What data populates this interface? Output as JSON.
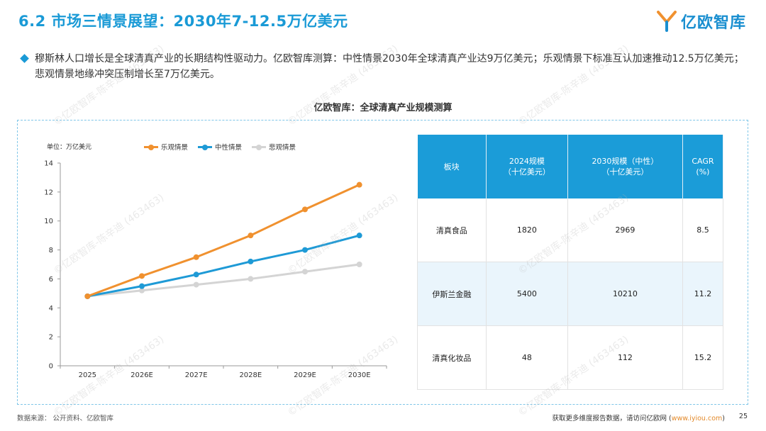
{
  "header": {
    "title": "6.2 市场三情景展望：2030年7-12.5万亿美元",
    "logo_text": "亿欧智库"
  },
  "bullet": "穆斯林人口增长是全球清真产业的长期结构性驱动力。亿欧智库测算：中性情景2030年全球清真产业达9万亿美元；乐观情景下标准互认加速推动12.5万亿美元；悲观情景地缘冲突压制增长至7万亿美元。",
  "figure_title": "亿欧智库：全球清真产业规模测算",
  "chart_data": {
    "type": "line",
    "unit_label": "单位：万亿美元",
    "x": [
      "2025",
      "2026E",
      "2027E",
      "2028E",
      "2029E",
      "2030E"
    ],
    "ylim": [
      0,
      14
    ],
    "yticks": [
      "0",
      "2",
      "4",
      "6",
      "8",
      "10",
      "12",
      "14"
    ],
    "grid": false,
    "legend_position": "top",
    "series": [
      {
        "name": "乐观情景",
        "color": "#f0912f",
        "values": [
          4.8,
          6.2,
          7.5,
          9.0,
          10.8,
          12.5
        ]
      },
      {
        "name": "中性情景",
        "color": "#1e9ad6",
        "values": [
          4.8,
          5.5,
          6.3,
          7.2,
          8.0,
          9.0
        ]
      },
      {
        "name": "悲观情景",
        "color": "#d4d4d4",
        "values": [
          4.8,
          5.2,
          5.6,
          6.0,
          6.5,
          7.0
        ]
      }
    ]
  },
  "table": {
    "headers": [
      [
        "板块"
      ],
      [
        "2024规模",
        "（十亿美元）"
      ],
      [
        "2030规模（中性）",
        "（十亿美元）"
      ],
      [
        "CAGR",
        "(%)"
      ]
    ],
    "rows": [
      [
        "清真食品",
        "1820",
        "2969",
        "8.5"
      ],
      [
        "伊斯兰金融",
        "5400",
        "10210",
        "11.2"
      ],
      [
        "清真化妆品",
        "48",
        "112",
        "15.2"
      ]
    ]
  },
  "footer": {
    "source": "数据来源：   公开资料、亿欧智库",
    "more_prefix": "获取更多维度报告数据，请访问亿欧网 (",
    "link": "www.iyiou.com",
    "more_suffix": ")",
    "page": "25"
  },
  "watermark": "©亿欧智库-陈辛迪 (463463)"
}
